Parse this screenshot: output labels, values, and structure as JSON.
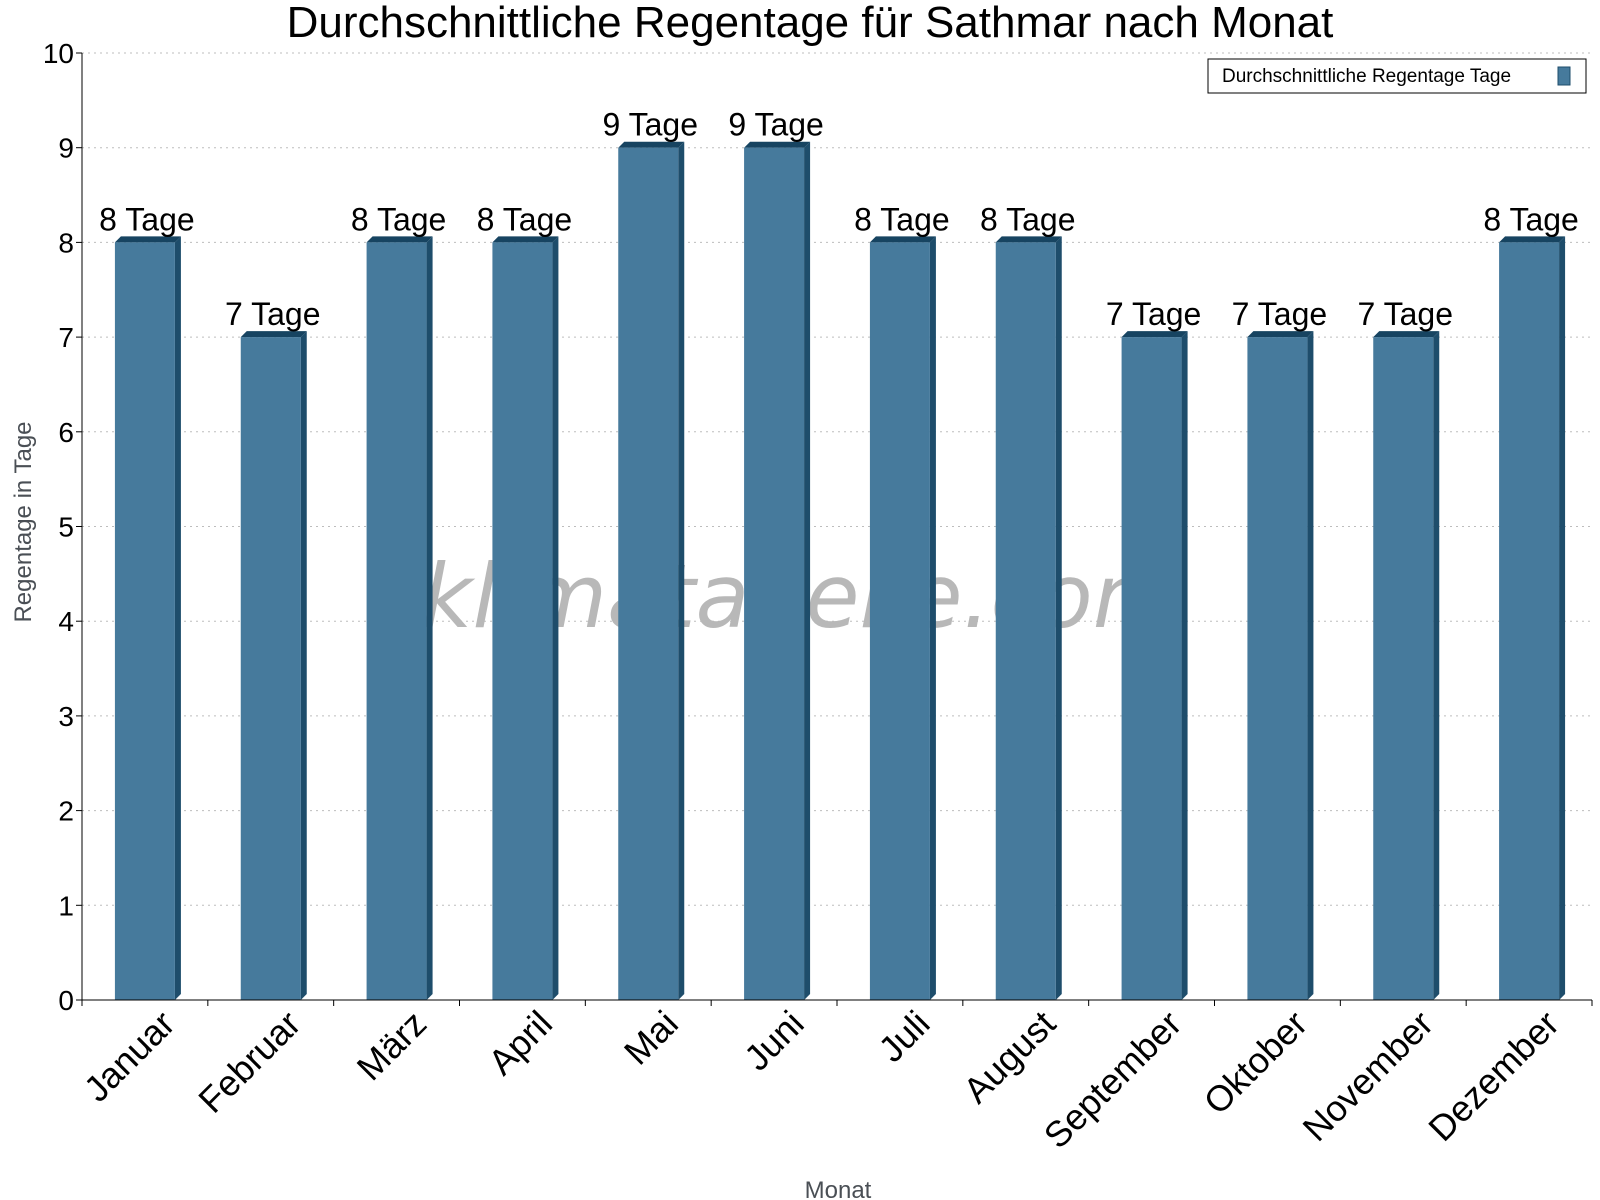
{
  "chart_data": {
    "type": "bar",
    "title": "Durchschnittliche Regentage für Sathmar nach Monat",
    "xlabel": "Monat",
    "ylabel": "Regentage in Tage",
    "ylim": [
      0,
      10
    ],
    "yticks": [
      0,
      1,
      2,
      3,
      4,
      5,
      6,
      7,
      8,
      9,
      10
    ],
    "grid": true,
    "legend_position": "top-right",
    "categories": [
      "Januar",
      "Februar",
      "März",
      "April",
      "Mai",
      "Juni",
      "Juli",
      "August",
      "September",
      "Oktober",
      "November",
      "Dezember"
    ],
    "series": [
      {
        "name": "Durchschnittliche Regentage Tage",
        "values": [
          8,
          7,
          8,
          8,
          9,
          9,
          8,
          8,
          7,
          7,
          7,
          8
        ],
        "labels": [
          "8 Tage",
          "7 Tage",
          "8 Tage",
          "8 Tage",
          "9 Tage",
          "9 Tage",
          "8 Tage",
          "8 Tage",
          "7 Tage",
          "7 Tage",
          "7 Tage",
          "8 Tage"
        ],
        "color": "#467a9c"
      }
    ]
  },
  "watermark": "klimatabelle.com",
  "colors": {
    "bar_front": "#467a9c",
    "bar_side": "#1e4d6b",
    "bar_top": "#174461"
  }
}
